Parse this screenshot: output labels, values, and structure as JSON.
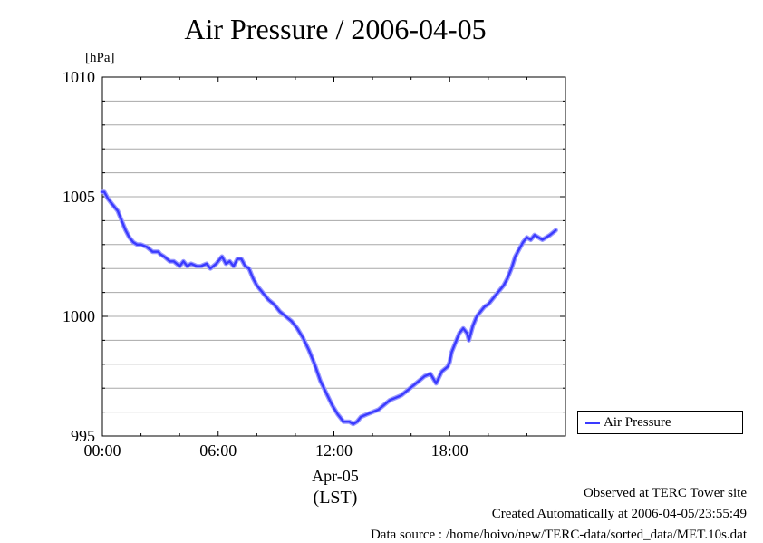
{
  "chart_data": {
    "type": "line",
    "title": "Air Pressure / 2006-04-05",
    "ylabel": "[hPa]",
    "xlabel_date": "Apr-05",
    "xlabel_tz": "(LST)",
    "ylim": [
      995,
      1010
    ],
    "xlim": [
      0,
      24
    ],
    "y_ticks": [
      {
        "value": 995,
        "label": "995"
      },
      {
        "value": 1000,
        "label": "1000"
      },
      {
        "value": 1005,
        "label": "1005"
      },
      {
        "value": 1010,
        "label": "1010"
      }
    ],
    "x_ticks": [
      {
        "value": 0,
        "label": "00:00"
      },
      {
        "value": 6,
        "label": "06:00"
      },
      {
        "value": 12,
        "label": "12:00"
      },
      {
        "value": 18,
        "label": "18:00"
      }
    ],
    "grid": true,
    "legend_position": "right",
    "series": [
      {
        "name": "Air Pressure",
        "color": "#3a3aff",
        "x": [
          0.0,
          0.1,
          0.3,
          0.5,
          0.8,
          1.0,
          1.2,
          1.4,
          1.6,
          1.8,
          2.0,
          2.3,
          2.6,
          2.9,
          3.0,
          3.2,
          3.5,
          3.7,
          4.0,
          4.2,
          4.4,
          4.6,
          4.9,
          5.1,
          5.4,
          5.6,
          5.9,
          6.2,
          6.4,
          6.6,
          6.8,
          7.0,
          7.2,
          7.4,
          7.6,
          7.8,
          8.0,
          8.3,
          8.6,
          8.9,
          9.2,
          9.5,
          9.8,
          10.1,
          10.4,
          10.7,
          11.0,
          11.3,
          11.6,
          11.9,
          12.2,
          12.5,
          12.8,
          13.0,
          13.2,
          13.4,
          13.7,
          14.0,
          14.3,
          14.6,
          14.9,
          15.2,
          15.5,
          15.8,
          16.1,
          16.4,
          16.7,
          17.0,
          17.3,
          17.6,
          17.9,
          18.0,
          18.1,
          18.3,
          18.5,
          18.7,
          18.9,
          19.0,
          19.2,
          19.4,
          19.6,
          19.8,
          20.0,
          20.2,
          20.4,
          20.6,
          20.8,
          21.0,
          21.2,
          21.4,
          21.6,
          21.8,
          22.0,
          22.2,
          22.4,
          22.6,
          22.8,
          23.0,
          23.2,
          23.5
        ],
        "values": [
          1005.2,
          1005.2,
          1004.9,
          1004.7,
          1004.4,
          1004.0,
          1003.6,
          1003.3,
          1003.1,
          1003.0,
          1003.0,
          1002.9,
          1002.7,
          1002.7,
          1002.6,
          1002.5,
          1002.3,
          1002.3,
          1002.1,
          1002.3,
          1002.1,
          1002.2,
          1002.1,
          1002.1,
          1002.2,
          1002.0,
          1002.2,
          1002.5,
          1002.2,
          1002.3,
          1002.1,
          1002.4,
          1002.4,
          1002.1,
          1002.0,
          1001.6,
          1001.3,
          1001.0,
          1000.7,
          1000.5,
          1000.2,
          1000.0,
          999.8,
          999.5,
          999.1,
          998.6,
          998.0,
          997.3,
          996.8,
          996.3,
          995.9,
          995.6,
          995.6,
          995.5,
          995.6,
          995.8,
          995.9,
          996.0,
          996.1,
          996.3,
          996.5,
          996.6,
          996.7,
          996.9,
          997.1,
          997.3,
          997.5,
          997.6,
          997.2,
          997.7,
          997.9,
          998.1,
          998.5,
          998.9,
          999.3,
          999.5,
          999.3,
          999.0,
          999.6,
          1000.0,
          1000.2,
          1000.4,
          1000.5,
          1000.7,
          1000.9,
          1001.1,
          1001.3,
          1001.6,
          1002.0,
          1002.5,
          1002.8,
          1003.1,
          1003.3,
          1003.2,
          1003.4,
          1003.3,
          1003.2,
          1003.3,
          1003.4,
          1003.6
        ]
      }
    ]
  },
  "footer": {
    "line1": "Observed at TERC Tower site",
    "line2": "Created Automatically at 2006-04-05/23:55:49",
    "line3": "Data source : /home/hoivo/new/TERC-data/sorted_data/MET.10s.dat"
  }
}
